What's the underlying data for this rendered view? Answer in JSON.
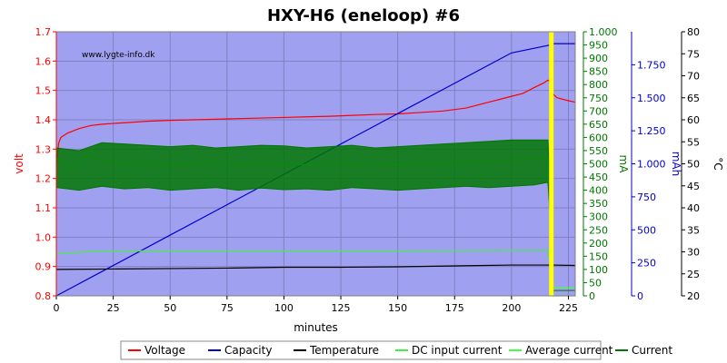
{
  "chart_data": {
    "type": "line",
    "title": "HXY-H6 (eneloop) #6",
    "watermark": "www.lygte-info.dk",
    "xlabel": "minutes",
    "xlim": [
      0,
      228
    ],
    "x_ticks": [
      "0",
      "25",
      "50",
      "75",
      "100",
      "125",
      "150",
      "175",
      "200",
      "225"
    ],
    "x_tick_values": [
      0,
      25,
      50,
      75,
      100,
      125,
      150,
      175,
      200,
      225
    ],
    "background": "#a0a0f0",
    "grid": true,
    "axes": {
      "volt": {
        "label": "volt",
        "color": "#ff0000",
        "range": [
          0.8,
          1.7
        ],
        "ticks": [
          "0.8",
          "0.9",
          "1.0",
          "1.1",
          "1.2",
          "1.3",
          "1.4",
          "1.5",
          "1.6",
          "1.7"
        ]
      },
      "ma": {
        "label": "mA",
        "color": "#007700",
        "range": [
          0,
          1000
        ],
        "ticks": [
          "0",
          "50",
          "100",
          "150",
          "200",
          "250",
          "300",
          "350",
          "400",
          "450",
          "500",
          "550",
          "600",
          "650",
          "700",
          "750",
          "800",
          "850",
          "900",
          "950",
          "1.000"
        ]
      },
      "mah": {
        "label": "mAh",
        "color": "#0000cc",
        "range": [
          0,
          2000
        ],
        "ticks": [
          "0",
          "250",
          "500",
          "750",
          "1.000",
          "1.250",
          "1.500",
          "1.750"
        ]
      },
      "temp": {
        "label": "°C",
        "color": "#000000",
        "range": [
          20,
          80
        ],
        "ticks": [
          "20",
          "25",
          "30",
          "35",
          "40",
          "45",
          "50",
          "55",
          "60",
          "65",
          "70",
          "75",
          "80"
        ]
      }
    },
    "charge_end_marker_x": 217.5,
    "series": [
      {
        "name": "Voltage",
        "axis": "volt",
        "color": "#ff0000",
        "x": [
          0,
          1,
          2,
          5,
          10,
          15,
          20,
          30,
          40,
          50,
          60,
          70,
          80,
          90,
          100,
          110,
          120,
          130,
          140,
          150,
          160,
          170,
          180,
          190,
          195,
          200,
          205,
          210,
          214,
          216,
          217,
          218,
          220,
          225,
          228
        ],
        "y": [
          1.24,
          1.32,
          1.34,
          1.355,
          1.37,
          1.38,
          1.385,
          1.39,
          1.395,
          1.398,
          1.4,
          1.402,
          1.404,
          1.406,
          1.408,
          1.41,
          1.412,
          1.415,
          1.418,
          1.42,
          1.425,
          1.43,
          1.44,
          1.46,
          1.47,
          1.48,
          1.49,
          1.51,
          1.525,
          1.535,
          1.53,
          1.49,
          1.475,
          1.465,
          1.46
        ]
      },
      {
        "name": "Capacity",
        "axis": "mah",
        "color": "#0000cc",
        "x": [
          0,
          25,
          50,
          75,
          100,
          125,
          150,
          175,
          200,
          217,
          218,
          228
        ],
        "y": [
          0,
          230,
          460,
          690,
          920,
          1150,
          1380,
          1610,
          1840,
          1900,
          1910,
          1910
        ]
      },
      {
        "name": "Temperature",
        "axis": "temp",
        "color": "#000000",
        "x": [
          0,
          25,
          50,
          75,
          100,
          125,
          150,
          175,
          200,
          217,
          218,
          228
        ],
        "y": [
          26.0,
          26.1,
          26.2,
          26.3,
          26.5,
          26.5,
          26.6,
          26.8,
          27.0,
          27.0,
          27.0,
          26.9
        ]
      },
      {
        "name": "DC input current",
        "axis": "ma",
        "color": "#44ee44",
        "x": [
          0,
          10,
          20,
          50,
          100,
          150,
          200,
          216,
          217,
          218,
          228
        ],
        "y": [
          160,
          165,
          170,
          170,
          170,
          170,
          172,
          172,
          120,
          0,
          0
        ]
      },
      {
        "name": "Average current",
        "axis": "ma",
        "color": "#44ff44",
        "x": [
          0,
          5,
          10,
          15,
          20,
          30,
          40,
          50,
          60,
          70,
          80,
          90,
          100,
          110,
          120,
          130,
          140,
          150,
          160,
          170,
          180,
          190,
          200,
          210,
          216,
          217,
          218,
          228
        ],
        "y": [
          520,
          490,
          505,
          540,
          510,
          500,
          505,
          495,
          500,
          505,
          498,
          502,
          500,
          496,
          503,
          499,
          501,
          497,
          502,
          500,
          505,
          510,
          515,
          520,
          520,
          400,
          30,
          30
        ]
      },
      {
        "name": "Current",
        "axis": "ma",
        "color": "#007700",
        "x": [
          0,
          10,
          20,
          30,
          40,
          50,
          60,
          70,
          80,
          90,
          100,
          110,
          120,
          130,
          140,
          150,
          160,
          170,
          180,
          190,
          200,
          210,
          216,
          217,
          218,
          228
        ],
        "y_min": [
          410,
          400,
          415,
          405,
          410,
          400,
          405,
          410,
          400,
          408,
          402,
          405,
          400,
          410,
          405,
          400,
          405,
          410,
          415,
          410,
          415,
          420,
          430,
          300,
          20,
          20
        ],
        "y_max": [
          560,
          550,
          580,
          575,
          570,
          565,
          570,
          560,
          565,
          570,
          568,
          560,
          565,
          570,
          560,
          565,
          570,
          575,
          580,
          585,
          590,
          590,
          590,
          400,
          20,
          20
        ]
      }
    ],
    "legend": {
      "position": "bottom"
    }
  }
}
